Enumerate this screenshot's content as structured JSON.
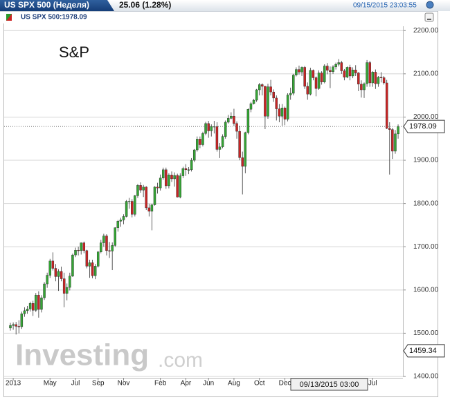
{
  "header": {
    "tab": "US SPX 500 (Неделя)",
    "change": "25.06 (1.28%)",
    "timestamp": "09/15/2015 23:03:55"
  },
  "chart_data": {
    "type": "candlestick",
    "title": "US SPX 500:1978.09",
    "annotation": "S&P",
    "up_color": "#35a535",
    "down_color": "#c82525",
    "grid": true,
    "xlim": [
      -2.2,
      138.7
    ],
    "xticks": [
      {
        "value": 1,
        "label": "2013"
      },
      {
        "value": 14,
        "label": "May"
      },
      {
        "value": 23,
        "label": "Jul"
      },
      {
        "value": 31,
        "label": "Sep"
      },
      {
        "value": 40,
        "label": "Nov"
      },
      {
        "value": 53,
        "label": "Feb"
      },
      {
        "value": 62,
        "label": "Apr"
      },
      {
        "value": 70,
        "label": "Jun"
      },
      {
        "value": 79,
        "label": "Aug"
      },
      {
        "value": 88,
        "label": "Oct"
      },
      {
        "value": 97,
        "label": "Dec"
      },
      {
        "value": 128,
        "label": "Jul"
      }
    ],
    "ylim": [
      1400,
      2210
    ],
    "yticks": [
      {
        "value": 1400,
        "label": "1400.00"
      },
      {
        "value": 1500,
        "label": "1500.00"
      },
      {
        "value": 1600,
        "label": "1600.00"
      },
      {
        "value": 1700,
        "label": "1700.00"
      },
      {
        "value": 1800,
        "label": "1800.00"
      },
      {
        "value": 1900,
        "label": "1900.00"
      },
      {
        "value": 2000,
        "label": "2000.00"
      },
      {
        "value": 2100,
        "label": "2100.00"
      },
      {
        "value": 2200,
        "label": "2200.00"
      }
    ],
    "ohlc": [
      [
        1512,
        1524,
        1506,
        1518
      ],
      [
        1518,
        1525,
        1508,
        1520
      ],
      [
        1520,
        1526,
        1497,
        1516
      ],
      [
        1516,
        1530,
        1500,
        1515
      ],
      [
        1515,
        1550,
        1510,
        1545
      ],
      [
        1545,
        1560,
        1538,
        1552
      ],
      [
        1552,
        1563,
        1545,
        1556
      ],
      [
        1556,
        1573,
        1550,
        1569
      ],
      [
        1569,
        1575,
        1540,
        1553
      ],
      [
        1553,
        1593,
        1549,
        1588
      ],
      [
        1588,
        1597,
        1536,
        1555
      ],
      [
        1555,
        1588,
        1548,
        1582
      ],
      [
        1582,
        1618,
        1577,
        1614
      ],
      [
        1614,
        1640,
        1605,
        1634
      ],
      [
        1634,
        1672,
        1628,
        1667
      ],
      [
        1667,
        1687,
        1645,
        1650
      ],
      [
        1650,
        1660,
        1620,
        1631
      ],
      [
        1631,
        1648,
        1598,
        1643
      ],
      [
        1643,
        1654,
        1620,
        1626
      ],
      [
        1626,
        1640,
        1560,
        1592
      ],
      [
        1592,
        1615,
        1576,
        1606
      ],
      [
        1606,
        1640,
        1599,
        1632
      ],
      [
        1632,
        1684,
        1630,
        1681
      ],
      [
        1681,
        1698,
        1676,
        1692
      ],
      [
        1692,
        1700,
        1680,
        1691
      ],
      [
        1691,
        1710,
        1682,
        1709
      ],
      [
        1709,
        1712,
        1685,
        1691
      ],
      [
        1691,
        1693,
        1650,
        1655
      ],
      [
        1655,
        1670,
        1628,
        1663
      ],
      [
        1663,
        1670,
        1627,
        1633
      ],
      [
        1633,
        1660,
        1625,
        1655
      ],
      [
        1655,
        1690,
        1652,
        1688
      ],
      [
        1688,
        1716,
        1685,
        1709
      ],
      [
        1709,
        1730,
        1700,
        1725
      ],
      [
        1725,
        1729,
        1680,
        1691
      ],
      [
        1691,
        1711,
        1674,
        1690
      ],
      [
        1690,
        1710,
        1646,
        1703
      ],
      [
        1703,
        1745,
        1700,
        1744
      ],
      [
        1744,
        1762,
        1735,
        1759
      ],
      [
        1759,
        1767,
        1746,
        1762
      ],
      [
        1762,
        1775,
        1752,
        1770
      ],
      [
        1770,
        1808,
        1768,
        1805
      ],
      [
        1805,
        1813,
        1788,
        1805
      ],
      [
        1805,
        1810,
        1768,
        1775
      ],
      [
        1775,
        1820,
        1770,
        1818
      ],
      [
        1818,
        1845,
        1813,
        1842
      ],
      [
        1842,
        1849,
        1825,
        1831
      ],
      [
        1831,
        1843,
        1815,
        1838
      ],
      [
        1838,
        1840,
        1785,
        1790
      ],
      [
        1790,
        1799,
        1770,
        1782
      ],
      [
        1782,
        1799,
        1738,
        1797
      ],
      [
        1797,
        1840,
        1795,
        1838
      ],
      [
        1838,
        1848,
        1823,
        1836
      ],
      [
        1836,
        1867,
        1830,
        1859
      ],
      [
        1859,
        1883,
        1855,
        1878
      ],
      [
        1878,
        1883,
        1834,
        1841
      ],
      [
        1841,
        1870,
        1835,
        1866
      ],
      [
        1866,
        1874,
        1850,
        1857
      ],
      [
        1857,
        1872,
        1839,
        1865
      ],
      [
        1865,
        1869,
        1814,
        1815
      ],
      [
        1815,
        1870,
        1812,
        1864
      ],
      [
        1864,
        1885,
        1859,
        1881
      ],
      [
        1881,
        1891,
        1864,
        1878
      ],
      [
        1878,
        1884,
        1868,
        1878
      ],
      [
        1878,
        1905,
        1874,
        1900
      ],
      [
        1900,
        1926,
        1896,
        1924
      ],
      [
        1924,
        1955,
        1920,
        1949
      ],
      [
        1949,
        1955,
        1928,
        1936
      ],
      [
        1936,
        1966,
        1932,
        1962
      ],
      [
        1962,
        1989,
        1958,
        1985
      ],
      [
        1985,
        1991,
        1952,
        1968
      ],
      [
        1968,
        1983,
        1955,
        1978
      ],
      [
        1978,
        1991,
        1962,
        1978
      ],
      [
        1978,
        1988,
        1920,
        1925
      ],
      [
        1925,
        1940,
        1905,
        1931
      ],
      [
        1931,
        1960,
        1928,
        1955
      ],
      [
        1955,
        1992,
        1950,
        1988
      ],
      [
        1988,
        2005,
        1985,
        1997
      ],
      [
        1997,
        2011,
        1995,
        2002
      ],
      [
        2002,
        2019,
        1980,
        1985
      ],
      [
        1985,
        1990,
        1950,
        1967
      ],
      [
        1967,
        1980,
        1900,
        1906
      ],
      [
        1906,
        1920,
        1821,
        1886
      ],
      [
        1886,
        1966,
        1870,
        1964
      ],
      [
        1964,
        2020,
        1960,
        2018
      ],
      [
        2018,
        2035,
        2011,
        2031
      ],
      [
        2031,
        2042,
        2029,
        2039
      ],
      [
        2039,
        2065,
        2035,
        2063
      ],
      [
        2063,
        2079,
        2050,
        2075
      ],
      [
        2075,
        2078,
        2050,
        2071
      ],
      [
        2071,
        2072,
        1972,
        2002
      ],
      [
        2002,
        2077,
        1996,
        2070
      ],
      [
        2070,
        2086,
        2050,
        2058
      ],
      [
        2058,
        2064,
        2035,
        2044
      ],
      [
        2044,
        2050,
        1992,
        2019
      ],
      [
        2019,
        2030,
        1988,
        2002
      ],
      [
        2002,
        2030,
        1980,
        2021
      ],
      [
        2021,
        2024,
        1981,
        1995
      ],
      [
        1995,
        2055,
        1990,
        2051
      ],
      [
        2051,
        2068,
        2040,
        2055
      ],
      [
        2055,
        2100,
        2050,
        2097
      ],
      [
        2097,
        2115,
        2094,
        2110
      ],
      [
        2110,
        2119,
        2098,
        2104
      ],
      [
        2104,
        2117,
        2095,
        2115
      ],
      [
        2115,
        2118,
        2065,
        2071
      ],
      [
        2071,
        2080,
        2040,
        2053
      ],
      [
        2053,
        2114,
        2050,
        2108
      ],
      [
        2108,
        2110,
        2085,
        2091
      ],
      [
        2091,
        2094,
        2048,
        2066
      ],
      [
        2066,
        2108,
        2063,
        2102
      ],
      [
        2102,
        2106,
        2075,
        2081
      ],
      [
        2081,
        2122,
        2078,
        2118
      ],
      [
        2118,
        2125,
        2099,
        2108
      ],
      [
        2108,
        2117,
        2067,
        2105
      ],
      [
        2105,
        2120,
        2100,
        2116
      ],
      [
        2116,
        2126,
        2110,
        2122
      ],
      [
        2122,
        2134,
        2117,
        2126
      ],
      [
        2126,
        2130,
        2100,
        2107
      ],
      [
        2107,
        2111,
        2085,
        2092
      ],
      [
        2092,
        2117,
        2090,
        2115
      ],
      [
        2115,
        2121,
        2085,
        2095
      ],
      [
        2095,
        2115,
        2090,
        2109
      ],
      [
        2109,
        2120,
        2095,
        2102
      ],
      [
        2102,
        2104,
        2060,
        2076
      ],
      [
        2076,
        2085,
        2045,
        2063
      ],
      [
        2063,
        2080,
        2044,
        2077
      ],
      [
        2077,
        2132,
        2070,
        2126
      ],
      [
        2126,
        2130,
        2070,
        2079
      ],
      [
        2079,
        2106,
        2070,
        2104
      ],
      [
        2104,
        2110,
        2065,
        2077
      ],
      [
        2077,
        2095,
        2070,
        2092
      ],
      [
        2092,
        2104,
        2080,
        2091
      ],
      [
        2091,
        2095,
        2075,
        2079
      ],
      [
        2079,
        2086,
        1972,
        1974
      ],
      [
        1974,
        1988,
        1867,
        1971
      ],
      [
        1971,
        1975,
        1903,
        1921
      ],
      [
        1921,
        1970,
        1915,
        1961
      ],
      [
        1961,
        1983,
        1950,
        1978.09
      ]
    ],
    "low_marker": 1459.34,
    "crosshair_label": "09/13/2015 03:00",
    "watermark": [
      "Investing",
      ".com"
    ]
  }
}
